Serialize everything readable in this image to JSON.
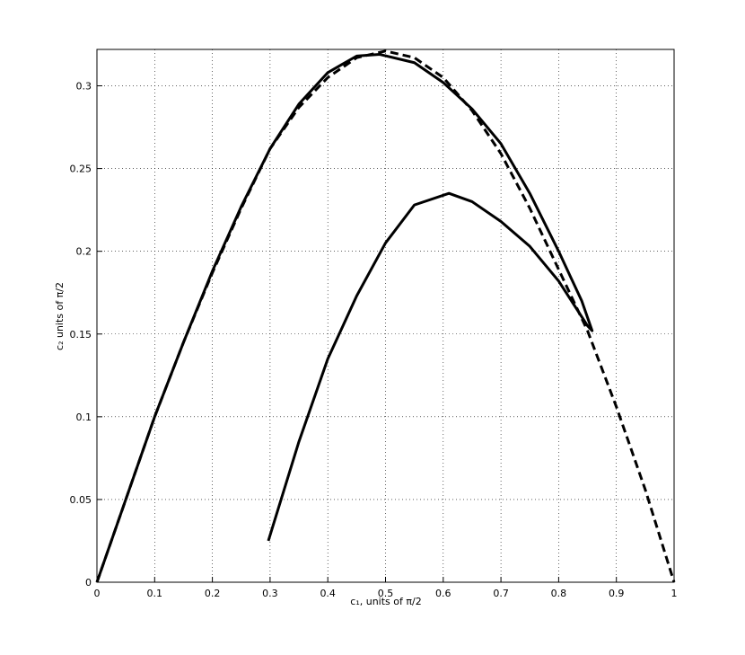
{
  "chart_data": {
    "type": "line",
    "xlabel": "c₁, units of π/2",
    "ylabel": "c₂ units of π/2",
    "xlim": [
      0,
      1
    ],
    "xticks": [
      0,
      0.1,
      0.2,
      0.3,
      0.4,
      0.5,
      0.6,
      0.7,
      0.8,
      0.9,
      1
    ],
    "ylim": [
      0,
      0.322
    ],
    "yticks": [
      0,
      0.05,
      0.1,
      0.15,
      0.2,
      0.25,
      0.3
    ],
    "grid": true,
    "series": [
      {
        "color": "#000000",
        "dashed": false,
        "x": [
          0,
          0.05,
          0.1,
          0.15,
          0.2,
          0.25,
          0.3,
          0.35,
          0.4,
          0.45,
          0.49,
          0.55,
          0.6,
          0.65,
          0.7,
          0.75,
          0.8,
          0.84,
          0.858,
          0.85,
          0.8,
          0.75,
          0.7,
          0.65,
          0.61,
          0.55,
          0.5,
          0.45,
          0.4,
          0.35,
          0.297
        ],
        "values": [
          0,
          0.05,
          0.1,
          0.145,
          0.188,
          0.227,
          0.262,
          0.289,
          0.308,
          0.318,
          0.319,
          0.314,
          0.302,
          0.286,
          0.265,
          0.235,
          0.2,
          0.17,
          0.152,
          0.155,
          0.182,
          0.203,
          0.218,
          0.23,
          0.235,
          0.228,
          0.205,
          0.173,
          0.135,
          0.085,
          0.025
        ]
      },
      {
        "color": "#000000",
        "dashed": true,
        "x": [
          0,
          0.05,
          0.1,
          0.15,
          0.2,
          0.25,
          0.3,
          0.35,
          0.4,
          0.45,
          0.5,
          0.55,
          0.6,
          0.65,
          0.7,
          0.75,
          0.8,
          0.85,
          0.9,
          0.95,
          1
        ],
        "values": [
          0,
          0.05,
          0.1,
          0.145,
          0.187,
          0.226,
          0.262,
          0.287,
          0.305,
          0.317,
          0.321,
          0.317,
          0.305,
          0.285,
          0.259,
          0.226,
          0.189,
          0.152,
          0.106,
          0.056,
          0
        ]
      }
    ]
  }
}
